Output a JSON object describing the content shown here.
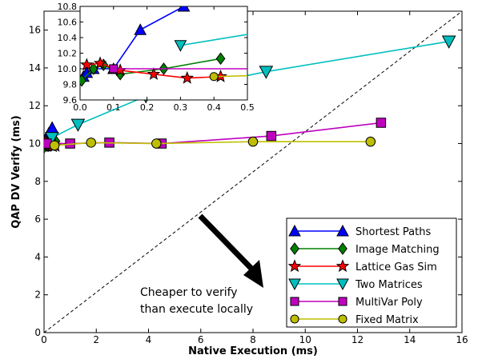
{
  "chart_data": [
    {
      "type": "line",
      "xlabel": "Native Execution (ms)",
      "ylabel": "QAP DV Verify (ms)",
      "xlim": [
        0,
        16
      ],
      "ylim": [
        0,
        17
      ],
      "x_ticks": [
        "0",
        "2",
        "4",
        "6",
        "8",
        "10",
        "12",
        "14",
        "16"
      ],
      "y_ticks": [
        "0",
        "2",
        "4",
        "6",
        "8",
        "10",
        "12",
        "14",
        "16"
      ],
      "grid": false,
      "legend_position": "bottom-right",
      "reference_line": {
        "style": "dashed",
        "from": [
          0,
          0
        ],
        "to": [
          16,
          17
        ]
      },
      "annotation": {
        "lines": [
          "Cheaper to verify",
          "than execute locally"
        ]
      },
      "series": [
        {
          "name": "Shortest Paths",
          "marker": "triangle-up",
          "color": "#0000ff",
          "points": [
            [
              0.01,
              9.9
            ],
            [
              0.02,
              9.95
            ],
            [
              0.04,
              10.0
            ],
            [
              0.1,
              10.0
            ],
            [
              0.18,
              10.5
            ],
            [
              0.31,
              10.8
            ]
          ]
        },
        {
          "name": "Image Matching",
          "marker": "diamond",
          "color": "#008000",
          "points": [
            [
              0.005,
              9.85
            ],
            [
              0.04,
              10.0
            ],
            [
              0.07,
              10.05
            ],
            [
              0.12,
              9.93
            ],
            [
              0.25,
              10.0
            ],
            [
              0.42,
              10.13
            ]
          ]
        },
        {
          "name": "Lattice Gas Sim",
          "marker": "star",
          "color": "#ff0000",
          "points": [
            [
              0.02,
              10.05
            ],
            [
              0.06,
              10.07
            ],
            [
              0.12,
              9.98
            ],
            [
              0.22,
              9.93
            ],
            [
              0.32,
              9.88
            ],
            [
              0.42,
              9.9
            ]
          ]
        },
        {
          "name": "Two Matrices",
          "marker": "triangle-down",
          "color": "#00bfbf",
          "points": [
            [
              0.3,
              10.3
            ],
            [
              1.3,
              11.0
            ],
            [
              3.9,
              12.5
            ],
            [
              8.5,
              13.8
            ],
            [
              15.5,
              15.4
            ]
          ]
        },
        {
          "name": "MultiVar Poly",
          "marker": "square",
          "color": "#bf00bf",
          "points": [
            [
              0.1,
              10.0
            ],
            [
              1.0,
              10.0
            ],
            [
              2.5,
              10.05
            ],
            [
              4.5,
              10.0
            ],
            [
              8.7,
              10.4
            ],
            [
              12.9,
              11.1
            ]
          ]
        },
        {
          "name": "Fixed Matrix",
          "marker": "circle",
          "color": "#bfbf00",
          "points": [
            [
              0.4,
              9.9
            ],
            [
              1.8,
              10.05
            ],
            [
              4.3,
              10.0
            ],
            [
              8.0,
              10.1
            ],
            [
              12.5,
              10.1
            ]
          ]
        }
      ]
    },
    {
      "type": "line",
      "inset": true,
      "xlim": [
        0,
        0.5
      ],
      "ylim": [
        9.6,
        10.8
      ],
      "x_ticks": [
        "0.0",
        "0.1",
        "0.2",
        "0.3",
        "0.4",
        "0.5"
      ],
      "y_ticks": [
        "9.6",
        "9.8",
        "10.0",
        "10.2",
        "10.4",
        "10.6",
        "10.8"
      ],
      "grid": false
    }
  ]
}
